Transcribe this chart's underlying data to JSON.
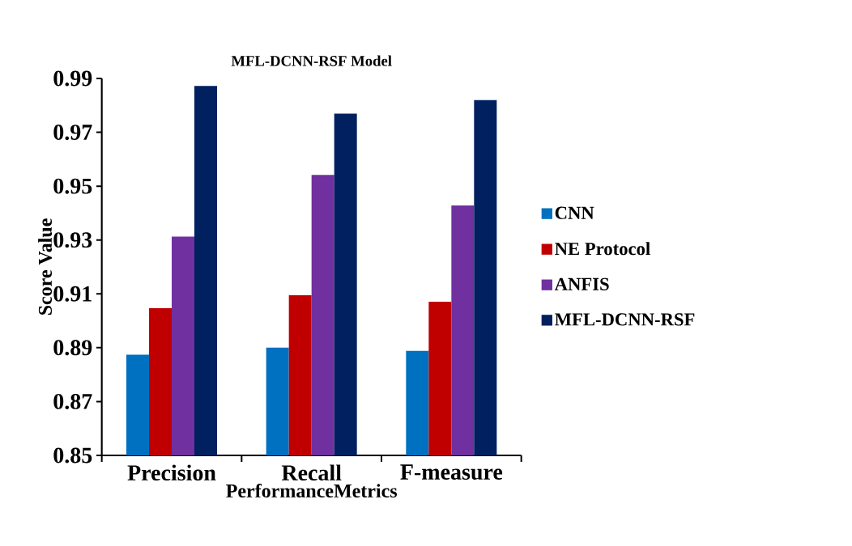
{
  "chart_data": {
    "type": "bar",
    "title": "MFL-DCNN-RSF Model",
    "xlabel": "PerformanceMetrics",
    "ylabel": "Score Value",
    "categories": [
      "Precision",
      "Recall",
      "F-measure"
    ],
    "series": [
      {
        "name": "CNN",
        "color": "#0070c0",
        "values": [
          0.8874,
          0.89,
          0.8888
        ]
      },
      {
        "name": "NE Protocol",
        "color": "#c00000",
        "values": [
          0.9047,
          0.9095,
          0.9071
        ]
      },
      {
        "name": "ANFIS",
        "color": "#7030a0",
        "values": [
          0.9313,
          0.9542,
          0.9428
        ]
      },
      {
        "name": "MFL-DCNN-RSF",
        "color": "#002060",
        "values": [
          0.9872,
          0.9769,
          0.982
        ]
      }
    ],
    "ylim": [
      0.85,
      0.99
    ],
    "yticks": [
      0.85,
      0.87,
      0.89,
      0.91,
      0.93,
      0.95,
      0.97,
      0.99
    ],
    "grid": false,
    "legend": "right"
  }
}
